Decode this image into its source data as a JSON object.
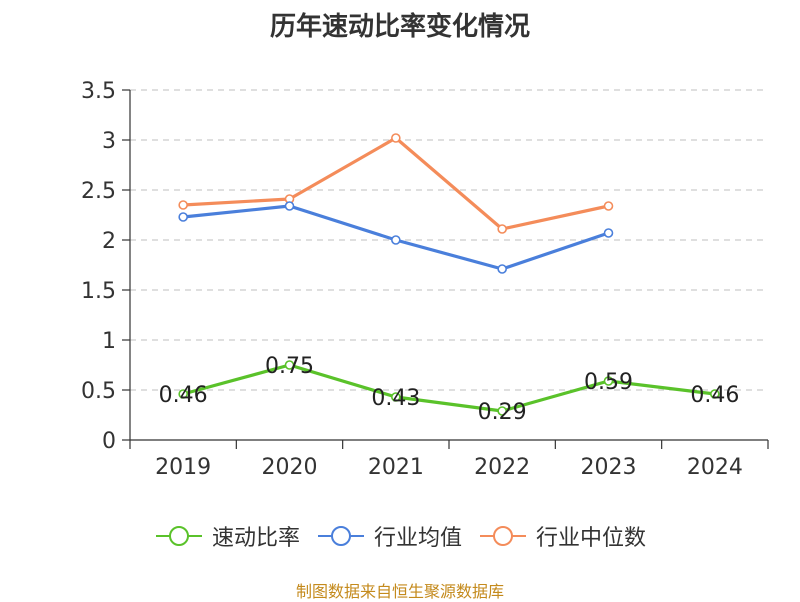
{
  "title": "历年速动比率变化情况",
  "source": "制图数据来自恒生聚源数据库",
  "colors": {
    "axis": "#333333",
    "grid": "#cccccc",
    "text": "#333333",
    "source": "#c48a1c"
  },
  "chart_data": {
    "type": "line",
    "title": "历年速动比率变化情况",
    "categories": [
      "2019",
      "2020",
      "2021",
      "2022",
      "2023",
      "2024"
    ],
    "ylim": [
      0,
      3.5
    ],
    "yticks": [
      "0",
      "0.5",
      "1",
      "1.5",
      "2",
      "2.5",
      "3",
      "3.5"
    ],
    "grid": "dashed-horizontal",
    "legend_position": "bottom",
    "series": [
      {
        "name": "速动比率",
        "color": "#5ac22a",
        "values": [
          0.46,
          0.75,
          0.43,
          0.29,
          0.59,
          0.46
        ],
        "labels": [
          "0.46",
          "0.75",
          "0.43",
          "0.29",
          "0.59",
          "0.46"
        ]
      },
      {
        "name": "行业均值",
        "color": "#4a7fdb",
        "values": [
          2.23,
          2.34,
          2.0,
          1.71,
          2.07,
          null
        ]
      },
      {
        "name": "行业中位数",
        "color": "#f48c5a",
        "values": [
          2.35,
          2.41,
          3.02,
          2.11,
          2.34,
          null
        ]
      }
    ]
  }
}
